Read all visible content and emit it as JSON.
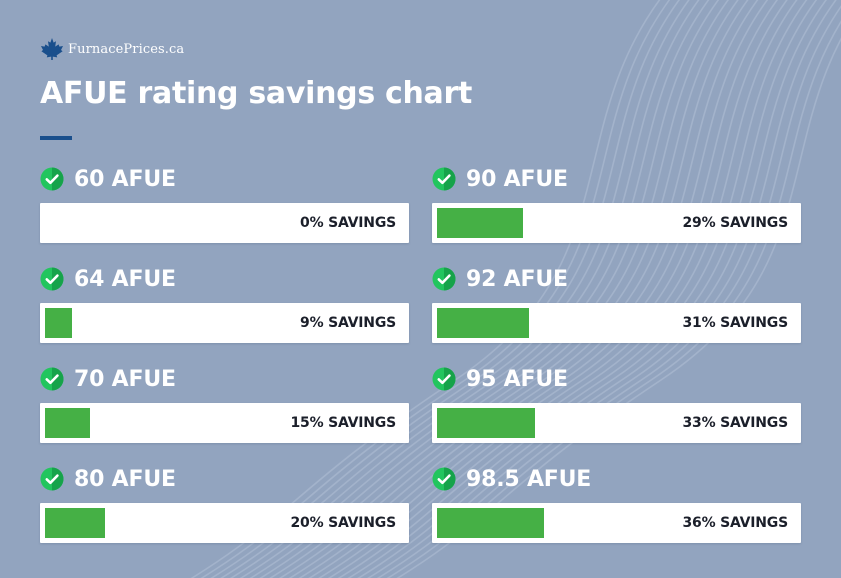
{
  "brand": {
    "logo_text": "FurnacePrices.ca",
    "logo_icon": "maple-leaf-icon"
  },
  "title": "AFUE rating savings chart",
  "colors": {
    "background": "#92a4bf",
    "bar_fill": "#45b045",
    "check_green": "#22c55e",
    "accent_rule": "#1a4f8c"
  },
  "chart_data": {
    "type": "bar",
    "title": "AFUE rating savings chart",
    "categories": [
      "60 AFUE",
      "64 AFUE",
      "70 AFUE",
      "80 AFUE",
      "90 AFUE",
      "92 AFUE",
      "95 AFUE",
      "98.5 AFUE"
    ],
    "values": [
      0,
      9,
      15,
      20,
      29,
      31,
      33,
      36
    ],
    "value_labels": [
      "0% SAVINGS",
      "9% SAVINGS",
      "15% SAVINGS",
      "20% SAVINGS",
      "29% SAVINGS",
      "31% SAVINGS",
      "33% SAVINGS",
      "36% SAVINGS"
    ],
    "unit": "%",
    "ylim": [
      0,
      100
    ]
  }
}
